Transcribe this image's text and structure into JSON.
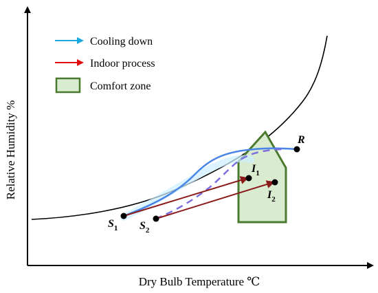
{
  "axes": {
    "x_label": "Dry Bulb Temperature ℃",
    "y_label": "Relative Humidity %"
  },
  "legend": {
    "cooling_label": "Cooling down",
    "indoor_label": "Indoor process",
    "comfort_label": "Comfort zone"
  },
  "points": {
    "s1": {
      "letter": "S",
      "sub": "1"
    },
    "s2": {
      "letter": "S",
      "sub": "2"
    },
    "i1": {
      "letter": "I",
      "sub": "1"
    },
    "i2": {
      "letter": "I",
      "sub": "2"
    },
    "r": {
      "letter": "R"
    }
  },
  "colors": {
    "cooling": "#1aa7e0",
    "indoor": "#e01010",
    "process_arrow": "#8b1a1a",
    "comfort_fill": "#d9ecd0",
    "comfort_stroke": "#4a7a2e",
    "curve_blue": "#4a86e8",
    "curve_dashed": "#7d6fe0",
    "saturation": "#000000"
  }
}
